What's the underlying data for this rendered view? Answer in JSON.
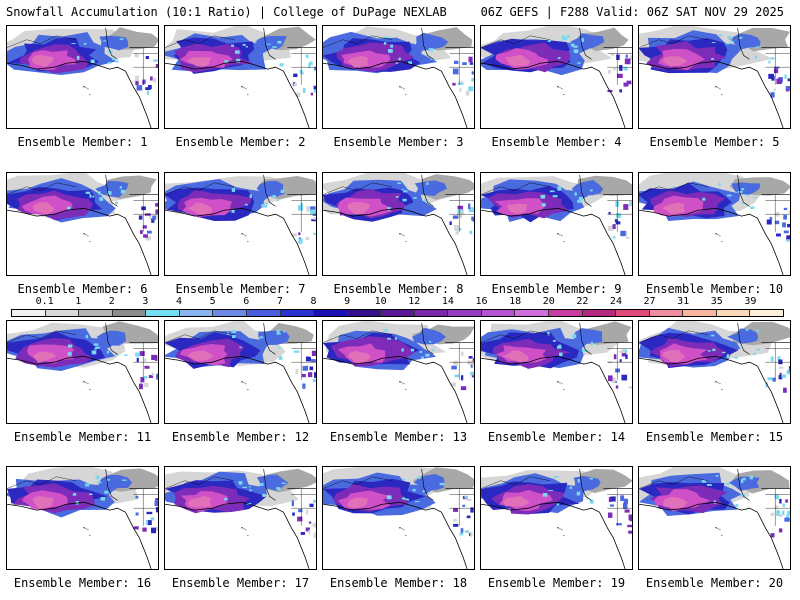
{
  "header": {
    "title_left": "Snowfall Accumulation (10:1 Ratio) | College of DuPage NEXLAB",
    "title_right": "06Z GEFS | F288 Valid: 06Z SAT NOV 29 2025"
  },
  "panels": [
    {
      "label": "Ensemble Member: 1"
    },
    {
      "label": "Ensemble Member: 2"
    },
    {
      "label": "Ensemble Member: 3"
    },
    {
      "label": "Ensemble Member: 4"
    },
    {
      "label": "Ensemble Member: 5"
    },
    {
      "label": "Ensemble Member: 6"
    },
    {
      "label": "Ensemble Member: 7"
    },
    {
      "label": "Ensemble Member: 8"
    },
    {
      "label": "Ensemble Member: 9"
    },
    {
      "label": "Ensemble Member: 10"
    },
    {
      "label": "Ensemble Member: 11"
    },
    {
      "label": "Ensemble Member: 12"
    },
    {
      "label": "Ensemble Member: 13"
    },
    {
      "label": "Ensemble Member: 14"
    },
    {
      "label": "Ensemble Member: 15"
    },
    {
      "label": "Ensemble Member: 16"
    },
    {
      "label": "Ensemble Member: 17"
    },
    {
      "label": "Ensemble Member: 18"
    },
    {
      "label": "Ensemble Member: 19"
    },
    {
      "label": "Ensemble Member: 20"
    }
  ],
  "scale": {
    "labels": [
      "0.1",
      "1",
      "2",
      "3",
      "4",
      "5",
      "6",
      "7",
      "8",
      "9",
      "10",
      "12",
      "14",
      "16",
      "18",
      "20",
      "22",
      "24",
      "27",
      "31",
      "35",
      "39"
    ],
    "colors": [
      "#f2f2f2",
      "#d8d8d8",
      "#b4b4b4",
      "#8c8c8c",
      "#72e0f0",
      "#8ab4f0",
      "#6a8ae6",
      "#4a5ee0",
      "#2a32d2",
      "#1a10b4",
      "#36108c",
      "#5a1896",
      "#7a28aa",
      "#963ec0",
      "#b454d2",
      "#d06ede",
      "#c83ca0",
      "#b42880",
      "#e04a7a",
      "#f08ca0",
      "#f8b49c",
      "#fcd8b8",
      "#fff0dc"
    ]
  },
  "colors": {
    "land_light": "#f2f2f2",
    "gray_light": "#d6d6d6",
    "gray_mid": "#a8a8a8",
    "blue": "#4a6ae0",
    "dark_blue": "#2a28c0",
    "purple": "#7c2cb8",
    "magenta": "#d050c8",
    "pink": "#e070b8",
    "cyan": "#7ad8f0"
  }
}
